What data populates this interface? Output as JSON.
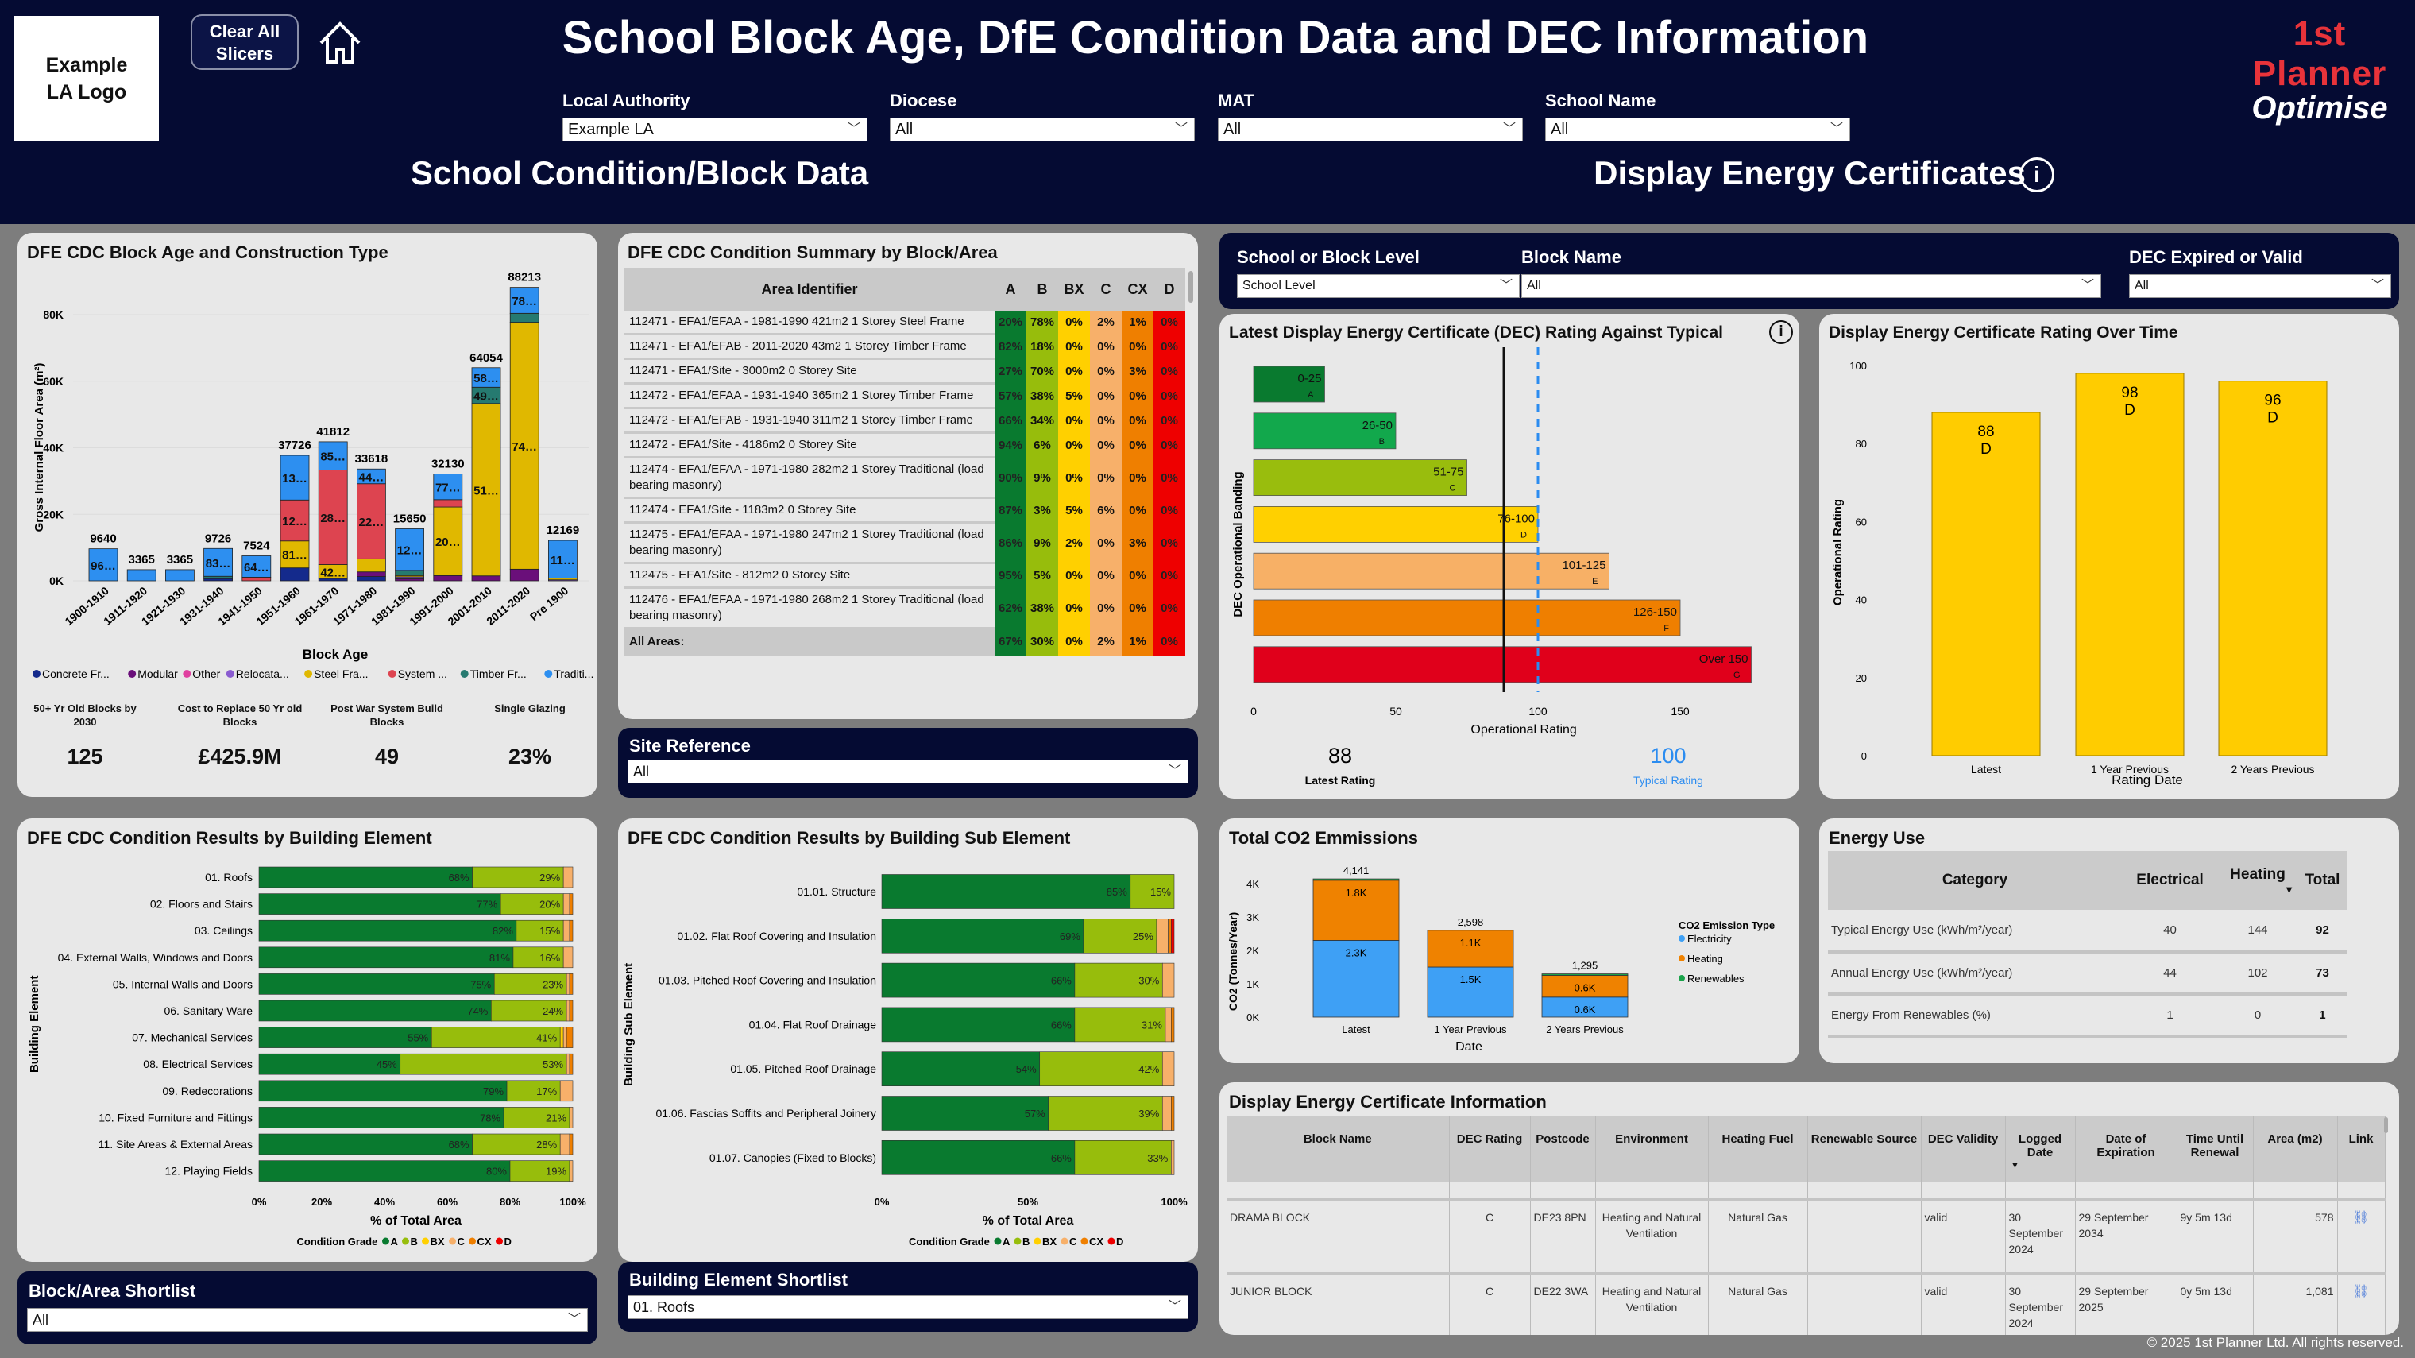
{
  "header": {
    "logo_text": "Example LA Logo",
    "clear_button": "Clear All Slicers",
    "title": "School Block Age, DfE Condition Data and DEC Information",
    "brand_top": "1st Planner",
    "brand_bottom": "Optimise",
    "section_left": "School Condition/Block Data",
    "section_right": "Display Energy Certificates",
    "slicers": [
      {
        "label": "Local Authority",
        "value": "Example LA"
      },
      {
        "label": "Diocese",
        "value": "All"
      },
      {
        "label": "MAT",
        "value": "All"
      },
      {
        "label": "School Name",
        "value": "All"
      }
    ]
  },
  "colors": {
    "navy": "#050b33",
    "grade_A": "#097a2f",
    "grade_B": "#97bd0c",
    "grade_BX": "#ffd000",
    "grade_C": "#f7b06a",
    "grade_CX": "#ef7f00",
    "grade_D": "#ee0000",
    "typical_line": "#2b8cf0"
  },
  "block_age": {
    "title": "DFE CDC Block Age and Construction Type",
    "kpis": [
      {
        "label": "50+ Yr Old Blocks by 2030",
        "value": "125"
      },
      {
        "label": "Cost to Replace 50 Yr old Blocks",
        "value": "£425.9M"
      },
      {
        "label": "Post War System Build Blocks",
        "value": "49"
      },
      {
        "label": "Single Glazing",
        "value": "23%"
      }
    ]
  },
  "condition_summary": {
    "title": "DFE CDC Condition Summary by Block/Area",
    "columns": [
      "Area Identifier",
      "A",
      "B",
      "BX",
      "C",
      "CX",
      "D"
    ],
    "rows": [
      {
        "id": "112471 - EFA1/EFAA - 1981-1990 421m2 1 Storey Steel Frame",
        "v": [
          "20%",
          "78%",
          "0%",
          "2%",
          "1%",
          "0%"
        ]
      },
      {
        "id": "112471 - EFA1/EFAB - 2011-2020 43m2 1 Storey Timber Frame",
        "v": [
          "82%",
          "18%",
          "0%",
          "0%",
          "0%",
          "0%"
        ]
      },
      {
        "id": "112471 - EFA1/Site - 3000m2 0 Storey Site",
        "v": [
          "27%",
          "70%",
          "0%",
          "0%",
          "3%",
          "0%"
        ]
      },
      {
        "id": "112472 - EFA1/EFAA - 1931-1940 365m2 1 Storey Timber Frame",
        "v": [
          "57%",
          "38%",
          "5%",
          "0%",
          "0%",
          "0%"
        ]
      },
      {
        "id": "112472 - EFA1/EFAB - 1931-1940 311m2 1 Storey Timber Frame",
        "v": [
          "66%",
          "34%",
          "0%",
          "0%",
          "0%",
          "0%"
        ]
      },
      {
        "id": "112472 - EFA1/Site - 4186m2 0 Storey Site",
        "v": [
          "94%",
          "6%",
          "0%",
          "0%",
          "0%",
          "0%"
        ]
      },
      {
        "id": "112474 - EFA1/EFAA - 1971-1980 282m2 1 Storey Traditional (load bearing masonry)",
        "v": [
          "90%",
          "9%",
          "0%",
          "0%",
          "0%",
          "0%"
        ]
      },
      {
        "id": "112474 - EFA1/Site - 1183m2 0 Storey Site",
        "v": [
          "87%",
          "3%",
          "5%",
          "6%",
          "0%",
          "0%"
        ]
      },
      {
        "id": "112475 - EFA1/EFAA - 1971-1980 247m2 1 Storey Traditional (load bearing masonry)",
        "v": [
          "86%",
          "9%",
          "2%",
          "0%",
          "3%",
          "0%"
        ]
      },
      {
        "id": "112475 - EFA1/Site - 812m2 0 Storey Site",
        "v": [
          "95%",
          "5%",
          "0%",
          "0%",
          "0%",
          "0%"
        ]
      },
      {
        "id": "112476 - EFA1/EFAA - 1971-1980 268m2 1 Storey Traditional (load bearing masonry)",
        "v": [
          "62%",
          "38%",
          "0%",
          "0%",
          "0%",
          "0%"
        ]
      }
    ],
    "total": {
      "id": "All Areas:",
      "v": [
        "67%",
        "30%",
        "0%",
        "2%",
        "1%",
        "0%"
      ]
    }
  },
  "site_reference": {
    "label": "Site Reference",
    "value": "All"
  },
  "block_shortlist": {
    "label": "Block/Area Shortlist",
    "value": "All"
  },
  "element_shortlist": {
    "label": "Building Element Shortlist",
    "value": "01. Roofs"
  },
  "dec_slicers": [
    {
      "label": "School or Block Level",
      "value": "School Level"
    },
    {
      "label": "Block Name",
      "value": "All"
    },
    {
      "label": "DEC Expired or Valid",
      "value": "All"
    }
  ],
  "dec_info": {
    "title": "Display Energy Certificate Information",
    "columns": [
      "Block Name",
      "DEC Rating",
      "Postcode",
      "Environment",
      "Heating Fuel",
      "Renewable Source",
      "DEC Validity",
      "Logged Date",
      "Date of Expiration",
      "Time Until Renewal",
      "Area (m2)",
      "Link"
    ],
    "sort_indicator": "▼",
    "rows": [
      [
        "DRAMA BLOCK",
        "C",
        "DE23 8PN",
        "Heating and Natural Ventilation",
        "Natural Gas",
        "",
        "valid",
        "30 September 2024",
        "29 September 2034",
        "9y 5m 13d",
        "578"
      ],
      [
        "JUNIOR BLOCK",
        "C",
        "DE22 3WA",
        "Heating and Natural Ventilation",
        "Natural Gas",
        "",
        "valid",
        "30 September 2024",
        "29 September 2025",
        "0y 5m 13d",
        "1,081"
      ]
    ]
  },
  "energy_use": {
    "title": "Energy Use",
    "columns": [
      "Category",
      "Electrical",
      "Heating",
      "Total"
    ],
    "sort_indicator": "▼",
    "rows": [
      [
        "Typical Energy Use (kWh/m²/year)",
        "40",
        "144",
        "92"
      ],
      [
        "Annual Energy Use (kWh/m²/year)",
        "44",
        "102",
        "73"
      ],
      [
        "Energy From Renewables (%)",
        "1",
        "0",
        "1"
      ]
    ]
  },
  "copyright": "© 2025 1st Planner Ltd. All rights reserved.",
  "chart_data": [
    {
      "id": "block_age",
      "type": "bar",
      "stacked": true,
      "title": "DFE CDC Block Age and Construction Type",
      "xlabel": "Block Age",
      "ylabel": "Gross Internal Floor Area (m²)",
      "ylim": [
        0,
        90000
      ],
      "yticks": [
        "0K",
        "20K",
        "40K",
        "60K",
        "80K"
      ],
      "legend_position": "bottom",
      "categories": [
        "1900-1910",
        "1911-1920",
        "1921-1930",
        "1931-1940",
        "1941-1950",
        "1951-1960",
        "1961-1970",
        "1971-1980",
        "1981-1990",
        "1991-2000",
        "2001-2010",
        "2011-2020",
        "Pre 1900"
      ],
      "totals": [
        9640,
        3365,
        3365,
        9726,
        7524,
        37726,
        41812,
        33618,
        15650,
        32130,
        64054,
        88213,
        12169
      ],
      "series": [
        {
          "name": "Concrete Fr...",
          "color": "#142a8c",
          "values": [
            0,
            0,
            0,
            676,
            0,
            3900,
            700,
            1300,
            0,
            0,
            0,
            0,
            0
          ]
        },
        {
          "name": "Modular",
          "color": "#6a0f7a",
          "values": [
            0,
            0,
            0,
            0,
            0,
            0,
            0,
            1400,
            600,
            1600,
            1500,
            3500,
            0
          ]
        },
        {
          "name": "Other",
          "color": "#e040a0",
          "values": [
            0,
            0,
            0,
            0,
            0,
            0,
            0,
            0,
            0,
            0,
            0,
            0,
            0
          ]
        },
        {
          "name": "Relocata...",
          "color": "#8a5cd0",
          "values": [
            0,
            0,
            0,
            0,
            0,
            0,
            0,
            0,
            600,
            0,
            0,
            0,
            300
          ]
        },
        {
          "name": "Steel Fra...",
          "color": "#e0b800",
          "values": [
            0,
            0,
            0,
            0,
            0,
            8100,
            4200,
            3900,
            400,
            20600,
            51800,
            74200,
            500
          ]
        },
        {
          "name": "System ...",
          "color": "#dd4450",
          "values": [
            0,
            0,
            0,
            0,
            1100,
            12300,
            28400,
            22600,
            0,
            2200,
            0,
            0,
            0
          ]
        },
        {
          "name": "Timber Fr...",
          "color": "#267a70",
          "values": [
            0,
            0,
            0,
            700,
            0,
            0,
            0,
            0,
            1550,
            0,
            4900,
            2700,
            0
          ]
        },
        {
          "name": "Traditi...",
          "color": "#2d8ff0",
          "values": [
            9640,
            3365,
            3365,
            8350,
            6424,
            13426,
            8512,
            4418,
            12500,
            7730,
            5854,
            7813,
            11369
          ]
        }
      ]
    },
    {
      "id": "building_element",
      "type": "bar",
      "orientation": "horizontal",
      "stacked": true,
      "title": "DFE CDC Condition Results by Building Element",
      "xlabel": "% of Total Area",
      "ylabel": "Building Element",
      "xlim": [
        0,
        100
      ],
      "xticks": [
        "0%",
        "20%",
        "40%",
        "60%",
        "80%",
        "100%"
      ],
      "legend_title": "Condition Grade",
      "legend": [
        "A",
        "B",
        "BX",
        "C",
        "CX",
        "D"
      ],
      "categories": [
        "01. Roofs",
        "02. Floors and Stairs",
        "03. Ceilings",
        "04. External Walls, Windows and Doors",
        "05. Internal Walls and Doors",
        "06. Sanitary Ware",
        "07. Mechanical Services",
        "08. Electrical Services",
        "09. Redecorations",
        "10. Fixed Furniture and Fittings",
        "11. Site Areas & External Areas",
        "12. Playing Fields"
      ],
      "values": [
        [
          68,
          29,
          0,
          3,
          0,
          0
        ],
        [
          77,
          20,
          0,
          2,
          1,
          0
        ],
        [
          82,
          15,
          0,
          2,
          1,
          0
        ],
        [
          81,
          16,
          0,
          3,
          0,
          0
        ],
        [
          75,
          23,
          0,
          1,
          1,
          0
        ],
        [
          74,
          24,
          0,
          1,
          1,
          0
        ],
        [
          55,
          41,
          1,
          1,
          2,
          0
        ],
        [
          45,
          53,
          0,
          1,
          1,
          0
        ],
        [
          79,
          17,
          0,
          4,
          0,
          0
        ],
        [
          78,
          21,
          0,
          1,
          0,
          0
        ],
        [
          68,
          28,
          0,
          3,
          1,
          0
        ],
        [
          80,
          19,
          0,
          1,
          0,
          0
        ]
      ]
    },
    {
      "id": "building_sub_element",
      "type": "bar",
      "orientation": "horizontal",
      "stacked": true,
      "title": "DFE CDC Condition Results by Building Sub Element",
      "xlabel": "% of Total Area",
      "ylabel": "Building Sub Element",
      "xlim": [
        0,
        100
      ],
      "xticks": [
        "0%",
        "50%",
        "100%"
      ],
      "legend_title": "Condition Grade",
      "legend": [
        "A",
        "B",
        "BX",
        "C",
        "CX",
        "D"
      ],
      "categories": [
        "01.01. Structure",
        "01.02. Flat Roof Covering and Insulation",
        "01.03. Pitched Roof Covering and Insulation",
        "01.04. Flat Roof Drainage",
        "01.05. Pitched Roof Drainage",
        "01.06. Fascias Soffits and Peripheral Joinery",
        "01.07. Canopies (Fixed to Blocks)"
      ],
      "values": [
        [
          85,
          15,
          0,
          0,
          0,
          0
        ],
        [
          69,
          25,
          0,
          4,
          1,
          1
        ],
        [
          66,
          30,
          0,
          4,
          0,
          0
        ],
        [
          66,
          31,
          0,
          2,
          1,
          0
        ],
        [
          54,
          42,
          0,
          4,
          0,
          0
        ],
        [
          57,
          39,
          0,
          3,
          1,
          0
        ],
        [
          66,
          33,
          0,
          1,
          0,
          0
        ]
      ]
    },
    {
      "id": "dec_vs_typical",
      "type": "bar",
      "orientation": "horizontal",
      "title": "Latest Display Energy Certificate (DEC) Rating Against Typical",
      "xlabel": "Operational Rating",
      "ylabel": "DEC Operational Banding",
      "xticks": [
        0,
        50,
        100,
        150
      ],
      "bands": [
        {
          "range": "0-25",
          "grade": "A",
          "value": 25,
          "color": "#097a2f"
        },
        {
          "range": "26-50",
          "grade": "B",
          "value": 50,
          "color": "#12a84c"
        },
        {
          "range": "51-75",
          "grade": "C",
          "value": 75,
          "color": "#99bd0d"
        },
        {
          "range": "76-100",
          "grade": "D",
          "value": 100,
          "color": "#ffd000"
        },
        {
          "range": "101-125",
          "grade": "E",
          "value": 125,
          "color": "#f7b066"
        },
        {
          "range": "126-150",
          "grade": "F",
          "value": 150,
          "color": "#ef7f00"
        },
        {
          "range": "Over 150",
          "grade": "G",
          "value": 175,
          "color": "#e0001b"
        }
      ],
      "latest_rating": 88,
      "latest_label": "Latest Rating",
      "typical_rating": 100,
      "typical_label": "Typical Rating"
    },
    {
      "id": "dec_over_time",
      "type": "bar",
      "title": "Display Energy Certificate Rating Over Time",
      "xlabel": "Rating Date",
      "ylabel": "Operational Rating",
      "ylim": [
        0,
        100
      ],
      "yticks": [
        0,
        20,
        40,
        60,
        80,
        100
      ],
      "categories": [
        "Latest",
        "1 Year Previous",
        "2 Years Previous"
      ],
      "values": [
        88,
        98,
        96
      ],
      "grades": [
        "D",
        "D",
        "D"
      ],
      "color": "#ffcc00"
    },
    {
      "id": "co2",
      "type": "bar",
      "stacked": true,
      "title": "Total CO2 Emmissions",
      "xlabel": "Date",
      "ylabel": "CO2 (Tonnes/Year)",
      "ylim": [
        0,
        4500
      ],
      "yticks": [
        "0K",
        "1K",
        "2K",
        "3K",
        "4K"
      ],
      "legend_title": "CO2 Emission Type",
      "categories": [
        "Latest",
        "1 Year Previous",
        "2 Years Previous"
      ],
      "totals": [
        "4,141",
        "2,598",
        "1,295"
      ],
      "series": [
        {
          "name": "Electricity",
          "color": "#3ea0f5",
          "values": [
            2300,
            1500,
            600
          ],
          "labels": [
            "2.3K",
            "1.5K",
            "0.6K"
          ]
        },
        {
          "name": "Heating",
          "color": "#ef8200",
          "values": [
            1800,
            1100,
            650
          ],
          "labels": [
            "1.8K",
            "1.1K",
            "0.6K"
          ]
        },
        {
          "name": "Renewables",
          "color": "#1aa34a",
          "values": [
            41,
            0,
            45
          ],
          "labels": [
            "",
            "",
            ""
          ]
        }
      ]
    }
  ]
}
